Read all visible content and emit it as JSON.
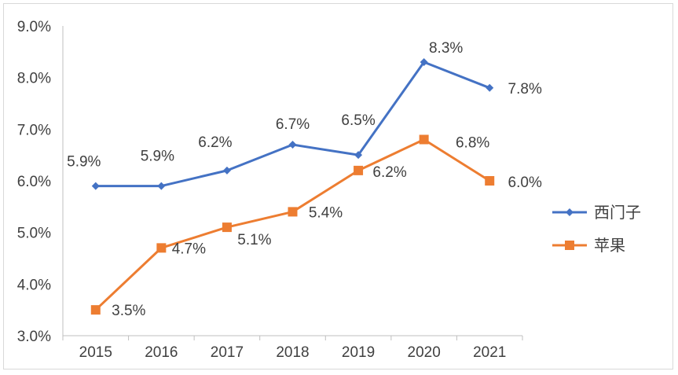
{
  "chart_data": {
    "type": "line",
    "categories": [
      "2015",
      "2016",
      "2017",
      "2018",
      "2019",
      "2020",
      "2021"
    ],
    "series": [
      {
        "name": "西门子",
        "color": "#4472c4",
        "marker": "diamond",
        "values": [
          5.9,
          5.9,
          6.2,
          6.7,
          6.5,
          8.3,
          7.8
        ],
        "labels": [
          "5.9%",
          "5.9%",
          "6.2%",
          "6.7%",
          "6.5%",
          "8.3%",
          "7.8%"
        ]
      },
      {
        "name": "苹果",
        "color": "#ed7d31",
        "marker": "square",
        "values": [
          3.5,
          4.7,
          5.1,
          5.4,
          6.2,
          6.8,
          6.0
        ],
        "labels": [
          "3.5%",
          "4.7%",
          "5.1%",
          "5.4%",
          "6.2%",
          "6.8%",
          "6.0%"
        ]
      }
    ],
    "ylim": [
      3.0,
      9.0
    ],
    "yticks": [
      "3.0%",
      "4.0%",
      "5.0%",
      "6.0%",
      "7.0%",
      "8.0%",
      "9.0%"
    ],
    "grid": false,
    "legend_position": "right",
    "title": "",
    "xlabel": "",
    "ylabel": ""
  }
}
